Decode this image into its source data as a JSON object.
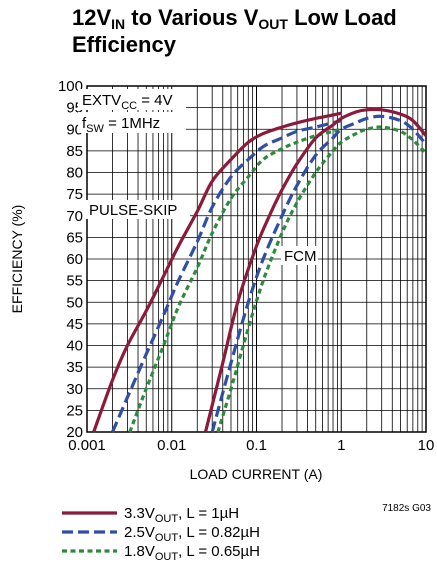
{
  "chart_data": {
    "type": "line",
    "title": {
      "line1_prefix": "12V",
      "line1_sub1": "IN",
      "line1_mid": " to Various V",
      "line1_sub2": "OUT",
      "line1_suffix": " Low Load",
      "line2": "Efficiency"
    },
    "xlabel": "LOAD CURRENT (A)",
    "ylabel": "EFFICIENCY (%)",
    "x_scale": "log",
    "xlim": [
      0.001,
      10
    ],
    "ylim": [
      20,
      100
    ],
    "grid": true,
    "x_ticks": [
      "0.001",
      "0.01",
      "0.1",
      "1",
      "10"
    ],
    "y_ticks": [
      "20",
      "25",
      "30",
      "35",
      "40",
      "45",
      "50",
      "55",
      "60",
      "65",
      "70",
      "75",
      "80",
      "85",
      "90",
      "95",
      "100"
    ],
    "annotations": {
      "extv_prefix": "EXTV",
      "extv_sub": "CC",
      "extv_suffix": " = 4V",
      "fsw_prefix": "f",
      "fsw_sub": "SW",
      "fsw_suffix": " = 1MHz",
      "pulse_skip": "PULSE-SKIP",
      "fcm": "FCM",
      "fig_code": "7182s G03"
    },
    "legend_position": "bottom",
    "series": [
      {
        "id": "v33",
        "legend_prefix": "3.3V",
        "legend_sub": "OUT",
        "legend_suffix": ", L = 1µH",
        "color": "#8b1a3b",
        "dash": "solid",
        "mode": "PULSE-SKIP",
        "x": [
          0.0012,
          0.002,
          0.003,
          0.005,
          0.008,
          0.012,
          0.02,
          0.03,
          0.05,
          0.08,
          0.12,
          0.2,
          0.3,
          0.5,
          0.8,
          1.0
        ],
        "y": [
          20,
          32,
          40,
          48,
          56,
          63,
          71,
          78,
          83,
          87,
          89,
          90.5,
          91.5,
          92.5,
          93.3,
          93.7
        ]
      },
      {
        "id": "v25",
        "legend_prefix": "2.5V",
        "legend_sub": "OUT",
        "legend_suffix": ", L = 0.82µH",
        "color": "#2e4fa3",
        "dash": "long",
        "mode": "PULSE-SKIP",
        "x": [
          0.002,
          0.003,
          0.005,
          0.008,
          0.012,
          0.02,
          0.03,
          0.05,
          0.08,
          0.12,
          0.2,
          0.3,
          0.5,
          0.8,
          1.0
        ],
        "y": [
          20,
          28,
          38,
          47,
          55,
          64,
          72,
          79,
          83,
          86,
          88,
          89.5,
          90.5,
          91.5,
          92
        ]
      },
      {
        "id": "v18",
        "legend_prefix": "1.8V",
        "legend_sub": "OUT",
        "legend_suffix": ", L = 0.65µH",
        "color": "#2e8b3e",
        "dash": "short",
        "mode": "PULSE-SKIP",
        "x": [
          0.0032,
          0.005,
          0.008,
          0.012,
          0.02,
          0.03,
          0.05,
          0.08,
          0.12,
          0.2,
          0.3,
          0.5,
          0.8,
          1.0
        ],
        "y": [
          20,
          30,
          40,
          49,
          58,
          66,
          74,
          79,
          83,
          85.5,
          87,
          88.5,
          89.5,
          90
        ]
      },
      {
        "id": "v33f",
        "color": "#8b1a3b",
        "dash": "solid",
        "mode": "FCM",
        "x": [
          0.025,
          0.04,
          0.06,
          0.1,
          0.15,
          0.2,
          0.3,
          0.5,
          0.8,
          1.0,
          1.5,
          2.0,
          3.0,
          5.0,
          7.0,
          10.0
        ],
        "y": [
          20,
          36,
          50,
          63,
          71,
          76,
          82,
          88,
          91,
          92.5,
          94,
          94.5,
          94.5,
          93.5,
          92,
          88.5
        ]
      },
      {
        "id": "v25f",
        "color": "#2e4fa3",
        "dash": "long",
        "mode": "FCM",
        "x": [
          0.03,
          0.05,
          0.08,
          0.12,
          0.2,
          0.3,
          0.5,
          0.8,
          1.0,
          1.5,
          2.0,
          3.0,
          5.0,
          7.0,
          10.0
        ],
        "y": [
          20,
          36,
          50,
          60,
          70,
          77,
          84,
          88,
          90,
          91.5,
          92.5,
          93,
          92,
          90,
          86.5
        ]
      },
      {
        "id": "v18f",
        "color": "#2e8b3e",
        "dash": "short",
        "mode": "FCM",
        "x": [
          0.035,
          0.05,
          0.08,
          0.12,
          0.2,
          0.3,
          0.5,
          0.8,
          1.0,
          1.5,
          2.0,
          3.0,
          5.0,
          7.0,
          10.0
        ],
        "y": [
          20,
          30,
          44,
          55,
          66,
          73,
          80,
          85,
          87,
          89,
          90,
          90.5,
          89.5,
          87.5,
          84.5
        ]
      }
    ]
  }
}
